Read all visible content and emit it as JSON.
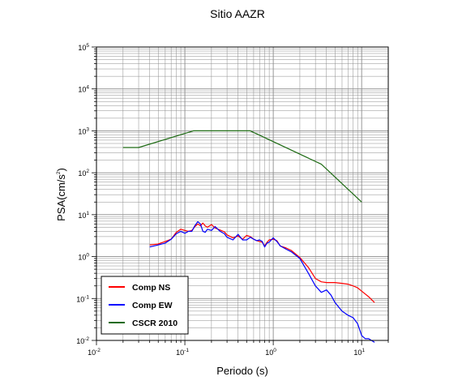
{
  "chart_data": {
    "type": "line",
    "title": "Sitio AAZR",
    "xlabel": "Periodo (s)",
    "ylabel_base": "PSA(cm/s",
    "ylabel_exp": "2",
    "ylabel_end": ")",
    "x_scale": "log",
    "y_scale": "log",
    "xlim": [
      0.01,
      20
    ],
    "ylim": [
      0.01,
      100000
    ],
    "grid": true,
    "legend_position": "bottom-left",
    "x_ticks": [
      {
        "value": 0.01,
        "base": "10",
        "exp": "-2"
      },
      {
        "value": 0.1,
        "base": "10",
        "exp": "-1"
      },
      {
        "value": 1,
        "base": "10",
        "exp": "0"
      },
      {
        "value": 10,
        "base": "10",
        "exp": "1"
      }
    ],
    "y_ticks": [
      {
        "value": 0.01,
        "base": "10",
        "exp": "-2"
      },
      {
        "value": 0.1,
        "base": "10",
        "exp": "-1"
      },
      {
        "value": 1,
        "base": "10",
        "exp": "0"
      },
      {
        "value": 10,
        "base": "10",
        "exp": "1"
      },
      {
        "value": 100,
        "base": "10",
        "exp": "2"
      },
      {
        "value": 1000,
        "base": "10",
        "exp": "3"
      },
      {
        "value": 10000,
        "base": "10",
        "exp": "4"
      },
      {
        "value": 100000,
        "base": "10",
        "exp": "5"
      }
    ],
    "series": [
      {
        "name": "Comp NS",
        "color": "#ff0000",
        "x": [
          0.04,
          0.05,
          0.06,
          0.07,
          0.08,
          0.09,
          0.1,
          0.11,
          0.12,
          0.13,
          0.14,
          0.15,
          0.16,
          0.17,
          0.18,
          0.2,
          0.22,
          0.25,
          0.28,
          0.3,
          0.35,
          0.4,
          0.45,
          0.5,
          0.55,
          0.6,
          0.65,
          0.7,
          0.75,
          0.8,
          0.85,
          0.9,
          1.0,
          1.1,
          1.2,
          1.4,
          1.6,
          2.0,
          2.5,
          3.0,
          3.5,
          4.0,
          5.0,
          6.0,
          7.0,
          8.0,
          9.0,
          10.0,
          12.0,
          14.0
        ],
        "y": [
          1.9,
          2.0,
          2.3,
          2.6,
          3.8,
          4.5,
          4.2,
          4.0,
          4.2,
          5.2,
          6.0,
          5.4,
          6.3,
          5.4,
          5.0,
          5.8,
          4.8,
          4.3,
          3.9,
          3.3,
          2.8,
          3.1,
          2.6,
          3.2,
          3.0,
          2.6,
          2.4,
          2.3,
          2.2,
          1.8,
          2.2,
          2.5,
          2.6,
          2.4,
          1.8,
          1.6,
          1.4,
          0.95,
          0.55,
          0.3,
          0.25,
          0.24,
          0.24,
          0.23,
          0.22,
          0.2,
          0.18,
          0.15,
          0.11,
          0.08
        ]
      },
      {
        "name": "Comp EW",
        "color": "#0000ff",
        "x": [
          0.04,
          0.05,
          0.06,
          0.07,
          0.08,
          0.09,
          0.1,
          0.11,
          0.12,
          0.13,
          0.14,
          0.15,
          0.16,
          0.17,
          0.18,
          0.2,
          0.22,
          0.25,
          0.28,
          0.3,
          0.35,
          0.4,
          0.45,
          0.5,
          0.55,
          0.6,
          0.65,
          0.7,
          0.75,
          0.8,
          0.85,
          0.9,
          1.0,
          1.1,
          1.2,
          1.4,
          1.6,
          2.0,
          2.5,
          3.0,
          3.5,
          4.0,
          4.5,
          5.0,
          6.0,
          7.0,
          8.0,
          9.0,
          10.0,
          11.0,
          12.0,
          14.0
        ],
        "y": [
          1.7,
          1.9,
          2.1,
          2.6,
          3.5,
          4.0,
          3.6,
          4.0,
          4.0,
          5.5,
          6.8,
          6.0,
          4.0,
          3.8,
          4.5,
          4.2,
          5.2,
          4.0,
          3.5,
          2.9,
          2.5,
          3.4,
          2.5,
          2.5,
          2.9,
          2.6,
          2.4,
          2.5,
          2.3,
          1.7,
          2.1,
          2.2,
          2.8,
          2.3,
          1.8,
          1.5,
          1.3,
          0.9,
          0.4,
          0.2,
          0.14,
          0.16,
          0.12,
          0.08,
          0.05,
          0.04,
          0.035,
          0.025,
          0.013,
          0.011,
          0.011,
          0.009
        ]
      },
      {
        "name": "CSCR 2010",
        "color": "#1e6b14",
        "x": [
          0.02,
          0.03,
          0.125,
          0.55,
          3.5,
          10.0
        ],
        "y": [
          400,
          400,
          1000,
          1000,
          160,
          20
        ]
      }
    ]
  }
}
